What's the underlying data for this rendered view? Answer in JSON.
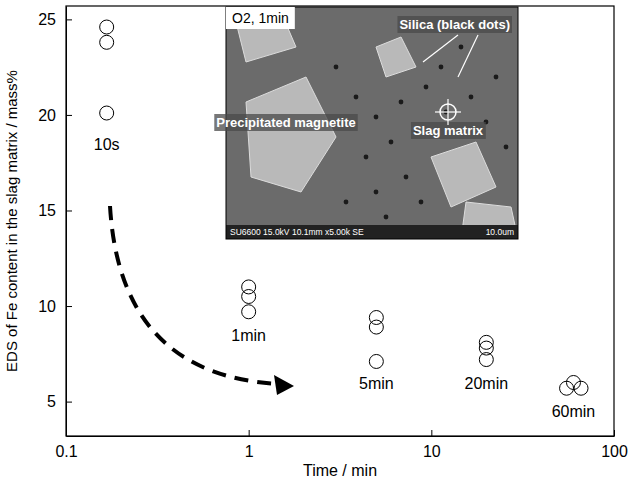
{
  "chart_data": {
    "type": "scatter",
    "x_label": "Time / min",
    "y_label": "EDS of Fe content in the slag matrix / mass%",
    "log": "x",
    "xlim": [
      0.1,
      100
    ],
    "xticks": [
      0.1,
      1,
      10,
      100
    ],
    "ylim": [
      3.2,
      25.7
    ],
    "yticks": [
      5,
      10,
      15,
      20,
      25
    ],
    "grid": false,
    "x": [
      0.167,
      0.167,
      0.167,
      1,
      1,
      1,
      5,
      5,
      5,
      20,
      20,
      20,
      55,
      60,
      66
    ],
    "series": [
      {
        "color": "#000000",
        "marker": "circle-open",
        "values": [
          24.6,
          23.8,
          20.1,
          11.0,
          10.5,
          9.7,
          9.4,
          8.9,
          7.1,
          8.1,
          7.8,
          7.2,
          5.7,
          6.0,
          5.7
        ]
      }
    ],
    "annotations": [
      {
        "text": "10s",
        "x": 0.167,
        "y": 18.4
      },
      {
        "text": "1min",
        "x": 1,
        "y": 8.4
      },
      {
        "text": "5min",
        "x": 5,
        "y": 5.9
      },
      {
        "text": "20min",
        "x": 20,
        "y": 5.9
      },
      {
        "text": "60min",
        "x": 60,
        "y": 4.4
      }
    ],
    "inset": {
      "title": "O2, 1min",
      "labels": [
        "Silica (black dots)",
        "Precipitated magnetite",
        "Slag matrix"
      ],
      "footer": "SU6600 15.0kV 10.1mm x5.00k SE",
      "scale_bar": "10.0um"
    }
  }
}
